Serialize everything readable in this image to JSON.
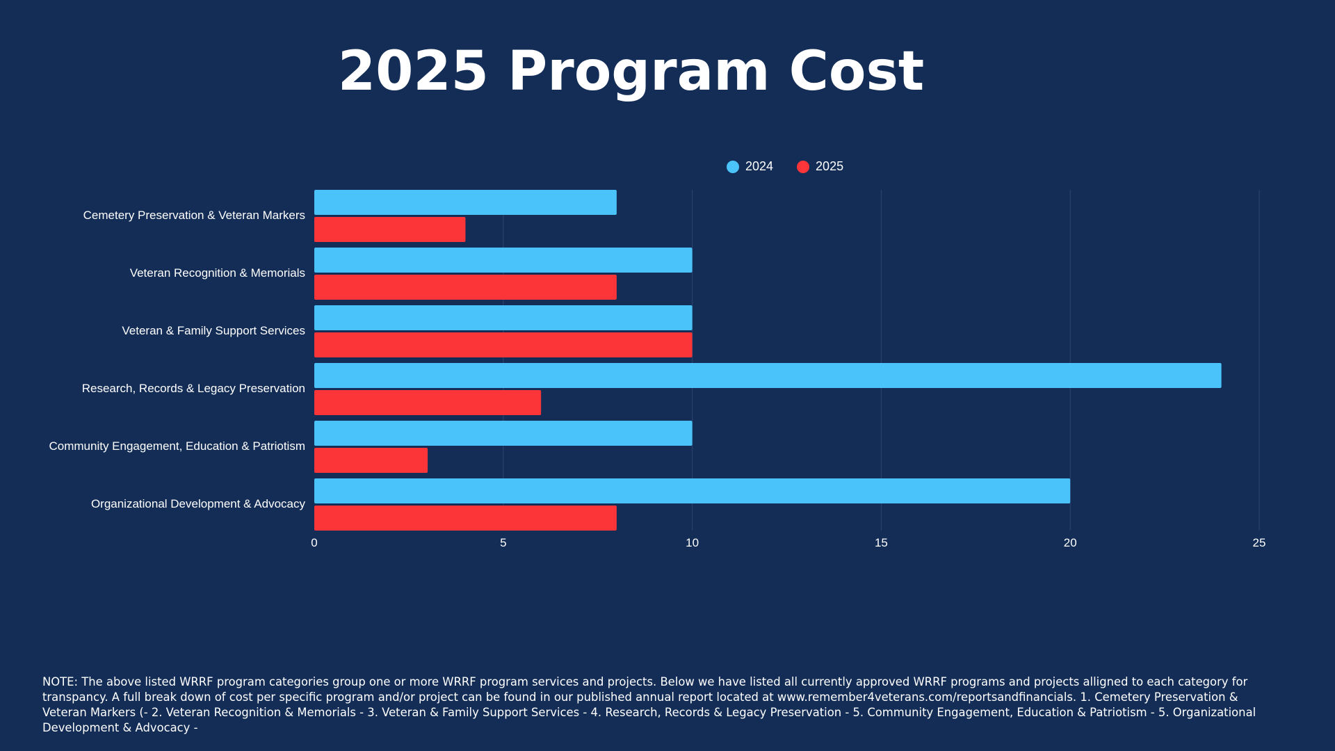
{
  "chart_data": {
    "type": "bar",
    "orientation": "horizontal",
    "title": "2025 Program Cost",
    "xlabel": "",
    "ylabel": "",
    "xlim": [
      0,
      25
    ],
    "x_ticks": [
      "0",
      "5",
      "10",
      "15",
      "20",
      "25"
    ],
    "grid": true,
    "legend_position": "top",
    "categories": [
      "Cemetery Preservation & Veteran Markers",
      "Veteran Recognition & Memorials",
      "Veteran & Family Support Services",
      "Research, Records & Legacy Preservation",
      "Community Engagement, Education & Patriotism",
      "Organizational Development & Advocacy"
    ],
    "series": [
      {
        "name": "2024",
        "color": "#4ac3fb",
        "values": [
          8,
          10,
          10,
          24,
          10,
          20
        ]
      },
      {
        "name": "2025",
        "color": "#fc3538",
        "values": [
          4,
          8,
          10,
          6,
          3,
          8
        ]
      }
    ]
  },
  "note": "NOTE:  The above listed WRRF program categories group one or more WRRF program services and projects.  Below we have listed all currently approved WRRF programs and projects alligned to each category for transpancy.  A full break down of cost per specific program and/or project can be found in our published annual report located at www.remember4veterans.com/reportsandfinancials.  1. Cemetery Preservation & Veteran Markers (-  2. Veteran Recognition & Memorials -  3. Veteran & Family Support Services -  4. Research, Records & Legacy Preservation -  5. Community Engagement, Education & Patriotism -  5. Organizational Development & Advocacy -",
  "colors": {
    "background": "#132d57",
    "gridline": "#2c4570"
  }
}
